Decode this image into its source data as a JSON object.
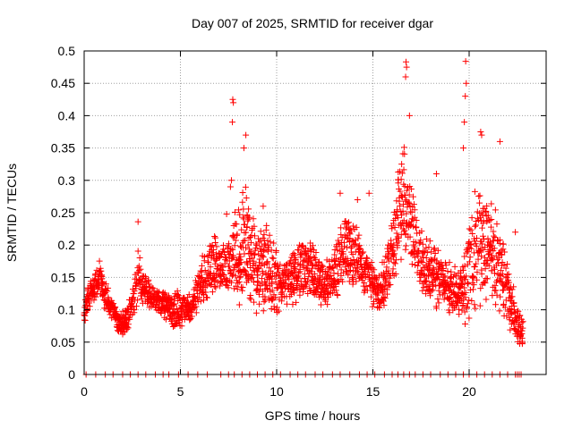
{
  "chart_data": {
    "type": "scatter",
    "title": "Day 007 of 2025, SRMTID for receiver dgar",
    "xlabel": "GPS time / hours",
    "ylabel": "SRMTID / TECUs",
    "xlim": [
      0,
      24
    ],
    "ylim": [
      0,
      0.5
    ],
    "grid": true,
    "marker": "+",
    "color": "#ff0000",
    "xticks": [
      {
        "value": 0,
        "label": "0"
      },
      {
        "value": 5,
        "label": "5"
      },
      {
        "value": 10,
        "label": "10"
      },
      {
        "value": 15,
        "label": "15"
      },
      {
        "value": 20,
        "label": "20"
      }
    ],
    "yticks": [
      {
        "value": 0,
        "label": "0"
      },
      {
        "value": 0.05,
        "label": "0.05"
      },
      {
        "value": 0.1,
        "label": "0.1"
      },
      {
        "value": 0.15,
        "label": "0.15"
      },
      {
        "value": 0.2,
        "label": "0.2"
      },
      {
        "value": 0.25,
        "label": "0.25"
      },
      {
        "value": 0.3,
        "label": "0.3"
      },
      {
        "value": 0.35,
        "label": "0.35"
      },
      {
        "value": 0.4,
        "label": "0.4"
      },
      {
        "value": 0.45,
        "label": "0.45"
      },
      {
        "value": 0.5,
        "label": "0.5"
      }
    ],
    "envelope_hours": [
      0,
      0.2,
      0.5,
      0.8,
      1.0,
      1.3,
      1.6,
      1.8,
      2.0,
      2.3,
      2.6,
      2.8,
      3.0,
      3.3,
      3.6,
      4.0,
      4.3,
      4.6,
      4.8,
      5.0,
      5.3,
      5.6,
      5.8,
      6.0,
      6.3,
      6.6,
      7.0,
      7.3,
      7.6,
      8.0,
      8.3,
      8.6,
      9.0,
      9.3,
      9.6,
      10.0,
      10.3,
      10.6,
      11.0,
      11.3,
      11.6,
      12.0,
      12.3,
      12.6,
      13.0,
      13.3,
      13.6,
      14.0,
      14.3,
      14.6,
      15.0,
      15.3,
      15.6,
      16.0,
      16.3,
      16.6,
      17.0,
      17.3,
      17.6,
      18.0,
      18.3,
      18.6,
      19.0,
      19.3,
      19.6,
      20.0,
      20.3,
      20.6,
      21.0,
      21.3,
      21.6,
      22.0,
      22.3,
      22.6,
      22.8
    ],
    "envelope_low": [
      0.07,
      0.09,
      0.11,
      0.12,
      0.1,
      0.09,
      0.08,
      0.06,
      0.05,
      0.07,
      0.09,
      0.11,
      0.11,
      0.1,
      0.1,
      0.09,
      0.08,
      0.07,
      0.07,
      0.07,
      0.08,
      0.08,
      0.09,
      0.1,
      0.11,
      0.12,
      0.12,
      0.12,
      0.11,
      0.1,
      0.1,
      0.09,
      0.09,
      0.09,
      0.08,
      0.08,
      0.09,
      0.1,
      0.11,
      0.12,
      0.12,
      0.11,
      0.1,
      0.1,
      0.11,
      0.12,
      0.13,
      0.13,
      0.13,
      0.12,
      0.1,
      0.08,
      0.1,
      0.13,
      0.16,
      0.18,
      0.16,
      0.14,
      0.12,
      0.11,
      0.1,
      0.1,
      0.09,
      0.09,
      0.08,
      0.06,
      0.08,
      0.1,
      0.11,
      0.1,
      0.09,
      0.07,
      0.05,
      0.04,
      0.04
    ],
    "envelope_high": [
      0.11,
      0.14,
      0.16,
      0.18,
      0.15,
      0.13,
      0.11,
      0.09,
      0.1,
      0.12,
      0.15,
      0.2,
      0.17,
      0.15,
      0.14,
      0.13,
      0.13,
      0.12,
      0.14,
      0.13,
      0.12,
      0.13,
      0.15,
      0.17,
      0.2,
      0.22,
      0.22,
      0.21,
      0.22,
      0.28,
      0.34,
      0.26,
      0.22,
      0.24,
      0.25,
      0.2,
      0.19,
      0.19,
      0.2,
      0.21,
      0.22,
      0.2,
      0.19,
      0.18,
      0.2,
      0.24,
      0.26,
      0.25,
      0.22,
      0.2,
      0.18,
      0.16,
      0.2,
      0.25,
      0.33,
      0.37,
      0.3,
      0.25,
      0.22,
      0.21,
      0.2,
      0.19,
      0.18,
      0.17,
      0.18,
      0.24,
      0.3,
      0.28,
      0.3,
      0.27,
      0.24,
      0.18,
      0.14,
      0.1,
      0.09
    ],
    "extra_points": [
      {
        "x": 2.8,
        "y": 0.236
      },
      {
        "x": 7.4,
        "y": 0.248
      },
      {
        "x": 7.6,
        "y": 0.29
      },
      {
        "x": 7.65,
        "y": 0.3
      },
      {
        "x": 7.7,
        "y": 0.39
      },
      {
        "x": 7.72,
        "y": 0.425
      },
      {
        "x": 7.75,
        "y": 0.42
      },
      {
        "x": 8.3,
        "y": 0.35
      },
      {
        "x": 8.4,
        "y": 0.37
      },
      {
        "x": 9.3,
        "y": 0.26
      },
      {
        "x": 13.3,
        "y": 0.28
      },
      {
        "x": 14.2,
        "y": 0.27
      },
      {
        "x": 14.8,
        "y": 0.28
      },
      {
        "x": 16.7,
        "y": 0.46
      },
      {
        "x": 16.72,
        "y": 0.483
      },
      {
        "x": 16.75,
        "y": 0.475
      },
      {
        "x": 16.9,
        "y": 0.4
      },
      {
        "x": 18.3,
        "y": 0.31
      },
      {
        "x": 19.7,
        "y": 0.35
      },
      {
        "x": 19.75,
        "y": 0.39
      },
      {
        "x": 19.8,
        "y": 0.43
      },
      {
        "x": 19.82,
        "y": 0.484
      },
      {
        "x": 19.85,
        "y": 0.45
      },
      {
        "x": 20.6,
        "y": 0.375
      },
      {
        "x": 20.65,
        "y": 0.37
      },
      {
        "x": 21.6,
        "y": 0.36
      },
      {
        "x": 22.4,
        "y": 0.22
      }
    ],
    "zero_marker_hours": [
      0.1,
      0.6,
      1.1,
      1.5,
      2.0,
      2.4,
      2.8,
      3.2,
      3.7,
      4.1,
      4.4,
      4.9,
      5.4,
      5.9,
      6.4,
      7.1,
      7.5,
      7.8,
      8.2,
      8.6,
      9.0,
      9.4,
      9.8,
      10.2,
      10.7,
      11.1,
      11.5,
      12.0,
      12.4,
      12.9,
      13.3,
      13.8,
      14.3,
      14.7,
      15.1,
      15.6,
      16.0,
      16.3,
      16.6,
      16.9,
      17.2,
      17.6,
      18.0,
      18.5,
      18.9,
      19.3,
      19.7,
      20.0,
      20.4,
      20.8,
      21.2,
      21.6,
      22.0,
      22.4,
      22.5,
      22.6,
      22.7
    ]
  }
}
